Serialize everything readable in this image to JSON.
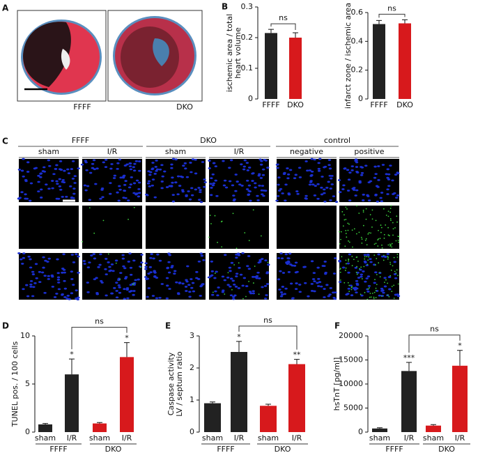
{
  "panel_A": {
    "label": "A",
    "images": [
      "FFFF",
      "DKO"
    ]
  },
  "panel_C": {
    "label": "C",
    "groups": [
      "FFFF",
      "DKO",
      "control"
    ],
    "conditions": [
      "sham",
      "I/R",
      "sham",
      "I/R",
      "negative",
      "positive"
    ]
  },
  "chart_data": [
    {
      "type": "bar",
      "label": "B",
      "ylabel": [
        "ischemic area / total",
        "heart volume"
      ],
      "categories": [
        "FFFF",
        "DKO"
      ],
      "values": [
        0.215,
        0.2
      ],
      "errors": [
        0.012,
        0.016
      ],
      "colors": [
        "#222222",
        "#d7191c"
      ],
      "ylim": [
        0,
        0.3
      ],
      "yticks": [
        0,
        0.1,
        0.2,
        0.3
      ],
      "bracket_label": "ns"
    },
    {
      "type": "bar",
      "ylabel": [
        "infarct zone / ischemic area"
      ],
      "categories": [
        "FFFF",
        "DKO"
      ],
      "values": [
        0.52,
        0.525
      ],
      "errors": [
        0.025,
        0.025
      ],
      "colors": [
        "#222222",
        "#d7191c"
      ],
      "ylim": [
        0,
        0.6
      ],
      "yticks": [
        0,
        0.2,
        0.4,
        0.6
      ],
      "bracket_label": "ns"
    },
    {
      "type": "bar",
      "label": "D",
      "ylabel": [
        "TUNEL pos. / 100 cells"
      ],
      "categories": [
        "sham",
        "I/R",
        "sham",
        "I/R"
      ],
      "groups": [
        "FFFF",
        "DKO"
      ],
      "values": [
        0.8,
        6.0,
        0.9,
        7.8
      ],
      "errors": [
        0.1,
        1.6,
        0.1,
        1.5
      ],
      "significance": [
        null,
        "*",
        null,
        "*"
      ],
      "colors": [
        "#222222",
        "#222222",
        "#d7191c",
        "#d7191c"
      ],
      "ylim": [
        0,
        10
      ],
      "yticks": [
        0,
        5,
        10
      ],
      "bracket_label": "ns"
    },
    {
      "type": "bar",
      "label": "E",
      "ylabel": [
        "Caspase activity",
        "LV / septum ratio"
      ],
      "categories": [
        "sham",
        "I/R",
        "sham",
        "I/R"
      ],
      "groups": [
        "FFFF",
        "DKO"
      ],
      "values": [
        0.9,
        2.5,
        0.82,
        2.12
      ],
      "errors": [
        0.04,
        0.33,
        0.05,
        0.15
      ],
      "significance": [
        null,
        "*",
        null,
        "**"
      ],
      "colors": [
        "#222222",
        "#222222",
        "#d7191c",
        "#d7191c"
      ],
      "ylim": [
        0,
        3
      ],
      "yticks": [
        0,
        1,
        2,
        3
      ],
      "bracket_label": "ns"
    },
    {
      "type": "bar",
      "label": "F",
      "ylabel": [
        "hsTnT [pg/ml]"
      ],
      "categories": [
        "sham",
        "I/R",
        "sham",
        "I/R"
      ],
      "groups": [
        "FFFF",
        "DKO"
      ],
      "values": [
        750,
        12700,
        1350,
        13800
      ],
      "errors": [
        150,
        1800,
        200,
        3200
      ],
      "significance": [
        null,
        "***",
        null,
        "*"
      ],
      "colors": [
        "#222222",
        "#222222",
        "#d7191c",
        "#d7191c"
      ],
      "ylim": [
        0,
        20000
      ],
      "yticks": [
        0,
        5000,
        10000,
        15000,
        20000
      ],
      "bracket_label": "ns"
    }
  ]
}
